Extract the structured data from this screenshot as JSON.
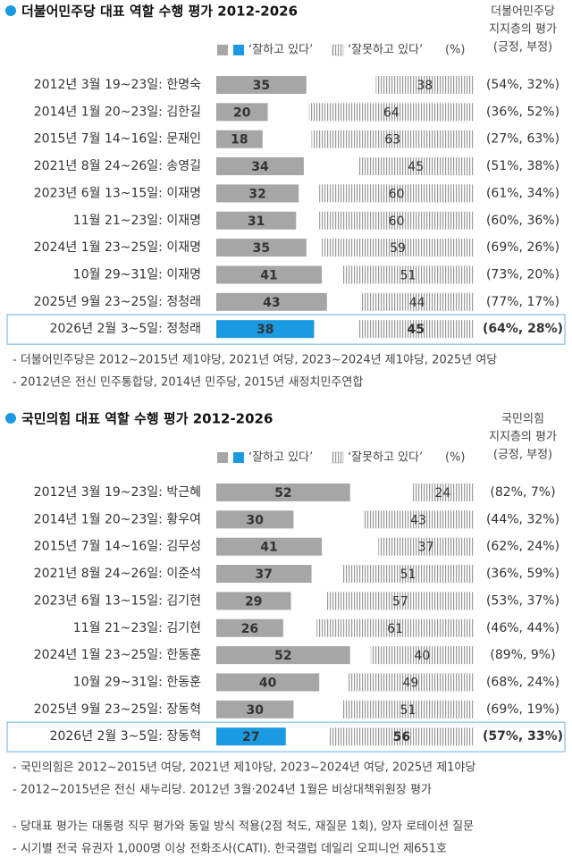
{
  "chart_data": [
    {
      "type": "bar",
      "title": "더불어민주당 대표 역할 수행 평가 2012-2026",
      "side_header": [
        "더불어민주당",
        "지지층의 평가",
        "(긍정, 부정)"
      ],
      "unit": "(%)",
      "categories": [
        "2012년 3월 19~23일: 한명숙",
        "2014년 1월 20~23일: 김한길",
        "2015년 7월 14~16일: 문재인",
        "2021년 8월 24~26일: 송영길",
        "2023년 6월 13~15일: 이재명",
        "11월 21~23일: 이재명",
        "2024년 1월 23~25일: 이재명",
        "10월 29~31일: 이재명",
        "2025년 9월 23~25일: 정청래",
        "2026년 2월 3~5일: 정청래"
      ],
      "series": [
        {
          "name": "‘잘하고 있다’",
          "color": "#a6a6a6",
          "highlight_color": "#1a9ae0",
          "values": [
            35,
            20,
            18,
            34,
            32,
            31,
            35,
            41,
            43,
            38
          ]
        },
        {
          "name": "‘잘못하고 있다’",
          "color": "#9a9a9a",
          "values": [
            38,
            64,
            63,
            45,
            60,
            60,
            59,
            51,
            44,
            45
          ]
        }
      ],
      "side_labels": [
        "(54%, 32%)",
        "(36%, 52%)",
        "(27%, 63%)",
        "(51%, 38%)",
        "(61%, 34%)",
        "(60%, 36%)",
        "(69%, 26%)",
        "(73%, 20%)",
        "(77%, 17%)",
        "(64%, 28%)"
      ],
      "highlight": 9,
      "xlim": [
        0,
        100
      ],
      "notes": [
        "- 더불어민주당은 2012~2015년 제1야당, 2021년 여당, 2023~2024년 제1야당, 2025년 여당",
        "- 2012년은 전신 민주통합당, 2014년 민주당, 2015년 새정치민주연합"
      ]
    },
    {
      "type": "bar",
      "title": "국민의힘 대표 역할 수행 평가 2012-2026",
      "side_header": [
        "국민의힘",
        "지지층의 평가",
        "(긍정, 부정)"
      ],
      "unit": "(%)",
      "categories": [
        "2012년 3월 19~23일: 박근혜",
        "2014년 1월 20~23일: 황우여",
        "2015년 7월 14~16일: 김무성",
        "2021년 8월 24~26일: 이준석",
        "2023년 6월 13~15일: 김기현",
        "11월 21~23일: 김기현",
        "2024년 1월 23~25일: 한동훈",
        "10월 29~31일: 한동훈",
        "2025년 9월 23~25일: 장동혁",
        "2026년 2월 3~5일: 장동혁"
      ],
      "series": [
        {
          "name": "‘잘하고 있다’",
          "color": "#a6a6a6",
          "highlight_color": "#1a9ae0",
          "values": [
            52,
            30,
            41,
            37,
            29,
            26,
            52,
            40,
            30,
            27
          ]
        },
        {
          "name": "‘잘못하고 있다’",
          "color": "#9a9a9a",
          "values": [
            24,
            43,
            37,
            51,
            57,
            61,
            40,
            49,
            51,
            56
          ]
        }
      ],
      "side_labels": [
        "(82%, 7%)",
        "(44%, 32%)",
        "(62%, 24%)",
        "(36%, 59%)",
        "(53%, 37%)",
        "(46%, 44%)",
        "(89%, 9%)",
        "(68%, 24%)",
        "(69%, 19%)",
        "(57%, 33%)"
      ],
      "highlight": 9,
      "xlim": [
        0,
        100
      ],
      "notes": [
        "- 국민의힘은 2012~2015년 여당, 2021년 제1야당, 2023~2024년 여당, 2025년 제1야당",
        "- 2012~2015년은 전신 새누리당. 2012년 3월·2024년 1월은 비상대책위원장 평가"
      ]
    }
  ],
  "footer": [
    "- 당대표 평가는 대통령 직무 평가와 동일 방식 적용(2점 척도, 재질문 1회), 양자 로테이션 질문",
    "- 시기별 전국 유권자 1,000명 이상 전화조사(CATI). 한국갤럽 데일리 오피니언 제651호"
  ]
}
